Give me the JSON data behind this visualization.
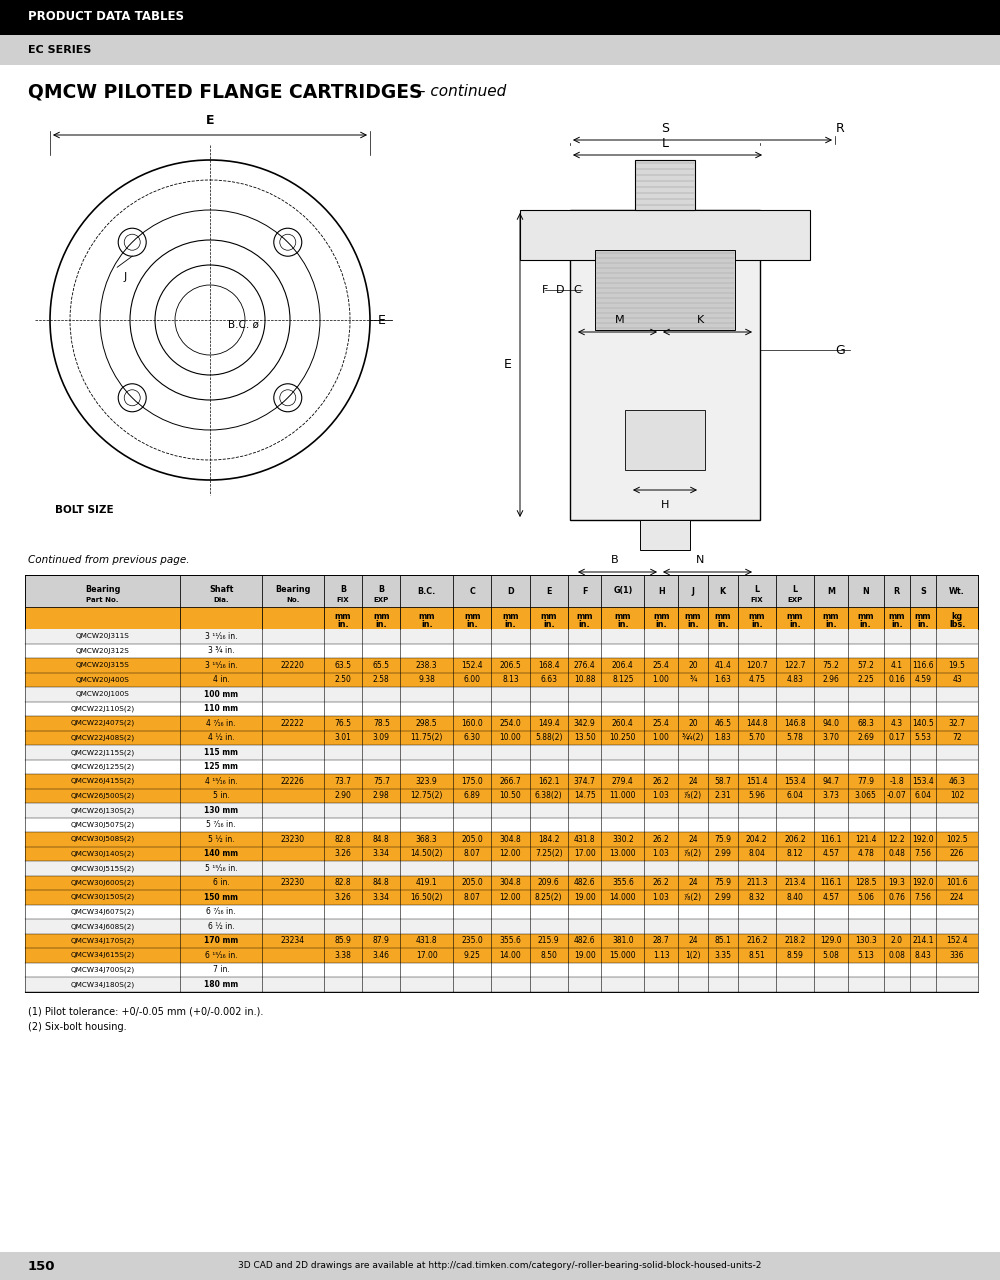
{
  "header_bg": "#000000",
  "header_text": "PRODUCT DATA TABLES",
  "header_text_color": "#ffffff",
  "subheader_bg": "#d3d3d3",
  "subheader_text": "EC SERIES",
  "subheader_text_color": "#000000",
  "title_bold": "QMCW PILOTED FLANGE CARTRIDGES",
  "title_italic": " – continued",
  "continued_text": "Continued from previous page.",
  "orange_color": "#f5a623",
  "table_header_bg": "#d0d0d0",
  "col_names": [
    "Bearing\nPart No.",
    "Shaft\nDia.",
    "Bearing\nNo.",
    "B\nFIX",
    "B\nEXP",
    "B.C.",
    "C",
    "D",
    "E",
    "F",
    "G(1)",
    "H",
    "J",
    "K",
    "L\nFIX",
    "L\nEXP",
    "M",
    "N",
    "R",
    "S",
    "Wt."
  ],
  "units_mm": [
    "",
    "",
    "",
    "mm",
    "mm",
    "mm",
    "mm",
    "mm",
    "mm",
    "mm",
    "mm",
    "mm",
    "mm",
    "mm",
    "mm",
    "mm",
    "mm",
    "mm",
    "mm",
    "mm",
    "kg"
  ],
  "units_in": [
    "",
    "",
    "",
    "in.",
    "in.",
    "in.",
    "in.",
    "in.",
    "in.",
    "in.",
    "in.",
    "in.",
    "in.",
    "in.",
    "in.",
    "in.",
    "in.",
    "in.",
    "in.",
    "in.",
    "lbs."
  ],
  "col_widths_rel": [
    130,
    68,
    52,
    32,
    32,
    44,
    32,
    32,
    32,
    28,
    36,
    28,
    25,
    25,
    32,
    32,
    28,
    30,
    22,
    22,
    35
  ],
  "table_rows": [
    [
      "QMCW20J311S",
      "3 ¹¹⁄₁₆ in.",
      "",
      "",
      "",
      "",
      "",
      "",
      "",
      "",
      "",
      "",
      "",
      "",
      "",
      "",
      "",
      "",
      "",
      "",
      ""
    ],
    [
      "QMCW20J312S",
      "3 ¾ in.",
      "",
      "",
      "",
      "",
      "",
      "",
      "",
      "",
      "",
      "",
      "",
      "",
      "",
      "",
      "",
      "",
      "",
      "",
      ""
    ],
    [
      "QMCW20J315S",
      "3 ¹⁵⁄₁₆ in.",
      "22220",
      "63.5",
      "65.5",
      "238.3",
      "152.4",
      "206.5",
      "168.4",
      "276.4",
      "206.4",
      "25.4",
      "20",
      "41.4",
      "120.7",
      "122.7",
      "75.2",
      "57.2",
      "4.1",
      "116.6",
      "19.5"
    ],
    [
      "QMCW20J400S",
      "4 in.",
      "",
      "2.50",
      "2.58",
      "9.38",
      "6.00",
      "8.13",
      "6.63",
      "10.88",
      "8.125",
      "1.00",
      "¾",
      "1.63",
      "4.75",
      "4.83",
      "2.96",
      "2.25",
      "0.16",
      "4.59",
      "43"
    ],
    [
      "QMCW20J100S",
      "100 mm",
      "",
      "",
      "",
      "",
      "",
      "",
      "",
      "",
      "",
      "",
      "",
      "",
      "",
      "",
      "",
      "",
      "",
      "",
      ""
    ],
    [
      "QMCW22J110S(2)",
      "110 mm",
      "",
      "",
      "",
      "",
      "",
      "",
      "",
      "",
      "",
      "",
      "",
      "",
      "",
      "",
      "",
      "",
      "",
      "",
      ""
    ],
    [
      "QMCW22J407S(2)",
      "4 ⁷⁄₁₆ in.",
      "22222",
      "76.5",
      "78.5",
      "298.5",
      "160.0",
      "254.0",
      "149.4",
      "342.9",
      "260.4",
      "25.4",
      "20",
      "46.5",
      "144.8",
      "146.8",
      "94.0",
      "68.3",
      "4.3",
      "140.5",
      "32.7"
    ],
    [
      "QMCW22J408S(2)",
      "4 ½ in.",
      "",
      "3.01",
      "3.09",
      "11.75(2)",
      "6.30",
      "10.00",
      "5.88(2)",
      "13.50",
      "10.250",
      "1.00",
      "¾⁄₄(2)",
      "1.83",
      "5.70",
      "5.78",
      "3.70",
      "2.69",
      "0.17",
      "5.53",
      "72"
    ],
    [
      "QMCW22J115S(2)",
      "115 mm",
      "",
      "",
      "",
      "",
      "",
      "",
      "",
      "",
      "",
      "",
      "",
      "",
      "",
      "",
      "",
      "",
      "",
      "",
      ""
    ],
    [
      "QMCW26J125S(2)",
      "125 mm",
      "",
      "",
      "",
      "",
      "",
      "",
      "",
      "",
      "",
      "",
      "",
      "",
      "",
      "",
      "",
      "",
      "",
      "",
      ""
    ],
    [
      "QMCW26J415S(2)",
      "4 ¹⁵⁄₁₆ in.",
      "22226",
      "73.7",
      "75.7",
      "323.9",
      "175.0",
      "266.7",
      "162.1",
      "374.7",
      "279.4",
      "26.2",
      "24",
      "58.7",
      "151.4",
      "153.4",
      "94.7",
      "77.9",
      "-1.8",
      "153.4",
      "46.3"
    ],
    [
      "QMCW26J500S(2)",
      "5 in.",
      "",
      "2.90",
      "2.98",
      "12.75(2)",
      "6.89",
      "10.50",
      "6.38(2)",
      "14.75",
      "11.000",
      "1.03",
      "⁷⁄₈(2)",
      "2.31",
      "5.96",
      "6.04",
      "3.73",
      "3.065",
      "-0.07",
      "6.04",
      "102"
    ],
    [
      "QMCW26J130S(2)",
      "130 mm",
      "",
      "",
      "",
      "",
      "",
      "",
      "",
      "",
      "",
      "",
      "",
      "",
      "",
      "",
      "",
      "",
      "",
      "",
      ""
    ],
    [
      "QMCW30J507S(2)",
      "5 ⁷⁄₁₆ in.",
      "",
      "",
      "",
      "",
      "",
      "",
      "",
      "",
      "",
      "",
      "",
      "",
      "",
      "",
      "",
      "",
      "",
      "",
      ""
    ],
    [
      "QMCW30J508S(2)",
      "5 ½ in.",
      "23230",
      "82.8",
      "84.8",
      "368.3",
      "205.0",
      "304.8",
      "184.2",
      "431.8",
      "330.2",
      "26.2",
      "24",
      "75.9",
      "204.2",
      "206.2",
      "116.1",
      "121.4",
      "12.2",
      "192.0",
      "102.5"
    ],
    [
      "QMCW30J140S(2)",
      "140 mm",
      "",
      "3.26",
      "3.34",
      "14.50(2)",
      "8.07",
      "12.00",
      "7.25(2)",
      "17.00",
      "13.000",
      "1.03",
      "⁷⁄₈(2)",
      "2.99",
      "8.04",
      "8.12",
      "4.57",
      "4.78",
      "0.48",
      "7.56",
      "226"
    ],
    [
      "QMCW30J515S(2)",
      "5 ¹⁵⁄₁₆ in.",
      "",
      "",
      "",
      "",
      "",
      "",
      "",
      "",
      "",
      "",
      "",
      "",
      "",
      "",
      "",
      "",
      "",
      "",
      ""
    ],
    [
      "QMCW30J600S(2)",
      "6 in.",
      "23230",
      "82.8",
      "84.8",
      "419.1",
      "205.0",
      "304.8",
      "209.6",
      "482.6",
      "355.6",
      "26.2",
      "24",
      "75.9",
      "211.3",
      "213.4",
      "116.1",
      "128.5",
      "19.3",
      "192.0",
      "101.6"
    ],
    [
      "QMCW30J150S(2)",
      "150 mm",
      "",
      "3.26",
      "3.34",
      "16.50(2)",
      "8.07",
      "12.00",
      "8.25(2)",
      "19.00",
      "14.000",
      "1.03",
      "⁷⁄₈(2)",
      "2.99",
      "8.32",
      "8.40",
      "4.57",
      "5.06",
      "0.76",
      "7.56",
      "224"
    ],
    [
      "QMCW34J607S(2)",
      "6 ⁷⁄₁₆ in.",
      "",
      "",
      "",
      "",
      "",
      "",
      "",
      "",
      "",
      "",
      "",
      "",
      "",
      "",
      "",
      "",
      "",
      "",
      ""
    ],
    [
      "QMCW34J608S(2)",
      "6 ½ in.",
      "",
      "",
      "",
      "",
      "",
      "",
      "",
      "",
      "",
      "",
      "",
      "",
      "",
      "",
      "",
      "",
      "",
      "",
      ""
    ],
    [
      "QMCW34J170S(2)",
      "170 mm",
      "23234",
      "85.9",
      "87.9",
      "431.8",
      "235.0",
      "355.6",
      "215.9",
      "482.6",
      "381.0",
      "28.7",
      "24",
      "85.1",
      "216.2",
      "218.2",
      "129.0",
      "130.3",
      "2.0",
      "214.1",
      "152.4"
    ],
    [
      "QMCW34J615S(2)",
      "6 ¹⁵⁄₁₆ in.",
      "",
      "3.38",
      "3.46",
      "17.00",
      "9.25",
      "14.00",
      "8.50",
      "19.00",
      "15.000",
      "1.13",
      "1(2)",
      "3.35",
      "8.51",
      "8.59",
      "5.08",
      "5.13",
      "0.08",
      "8.43",
      "336"
    ],
    [
      "QMCW34J700S(2)",
      "7 in.",
      "",
      "",
      "",
      "",
      "",
      "",
      "",
      "",
      "",
      "",
      "",
      "",
      "",
      "",
      "",
      "",
      "",
      "",
      ""
    ],
    [
      "QMCW34J180S(2)",
      "180 mm",
      "",
      "",
      "",
      "",
      "",
      "",
      "",
      "",
      "",
      "",
      "",
      "",
      "",
      "",
      "",
      "",
      "",
      "",
      ""
    ]
  ],
  "highlight_rows": [
    2,
    3,
    6,
    7,
    10,
    11,
    14,
    15,
    17,
    18,
    21,
    22
  ],
  "footnote1": "(1) Pilot tolerance: +0/-0.05 mm (+0/-0.002 in.).",
  "footnote2": "(2) Six-bolt housing.",
  "page_number": "150",
  "page_url": "3D CAD and 2D drawings are available at http://cad.timken.com/category/-roller-bearing-solid-block-housed-units-2"
}
